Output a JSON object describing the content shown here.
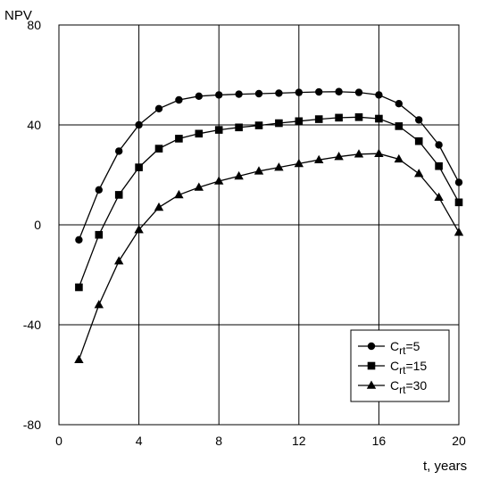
{
  "chart_data": {
    "type": "line",
    "ylabel": "NPV",
    "xlabel": "t, years",
    "xlim": [
      0,
      20
    ],
    "ylim": [
      -80,
      80
    ],
    "x_ticks": [
      0,
      4,
      8,
      12,
      16,
      20
    ],
    "y_ticks": [
      -80,
      -40,
      0,
      40,
      80
    ],
    "grid": true,
    "legend_position": "bottom-right",
    "x": [
      1,
      2,
      3,
      4,
      5,
      6,
      7,
      8,
      9,
      10,
      11,
      12,
      13,
      14,
      15,
      16,
      17,
      18,
      19,
      20
    ],
    "series": [
      {
        "name": "C",
        "subscript": "rt",
        "suffix": "=5",
        "marker": "circle",
        "values": [
          -6,
          14,
          29.5,
          40,
          46.5,
          50,
          51.5,
          52,
          52.3,
          52.5,
          52.7,
          53,
          53.2,
          53.3,
          53,
          52,
          48.5,
          42,
          32,
          17
        ]
      },
      {
        "name": "C",
        "subscript": "rt",
        "suffix": "=15",
        "marker": "square",
        "values": [
          -25,
          -4,
          12,
          23,
          30.5,
          34.5,
          36.5,
          38,
          39,
          39.8,
          40.7,
          41.5,
          42.3,
          42.9,
          43.1,
          42.5,
          39.5,
          33.5,
          23.5,
          9
        ]
      },
      {
        "name": "C",
        "subscript": "rt",
        "suffix": "=30",
        "marker": "triangle",
        "values": [
          -54,
          -32,
          -14.5,
          -2,
          7,
          12,
          15,
          17.5,
          19.5,
          21.5,
          23,
          24.5,
          26,
          27.3,
          28.3,
          28.5,
          26.3,
          20.5,
          11,
          -3
        ]
      }
    ]
  }
}
